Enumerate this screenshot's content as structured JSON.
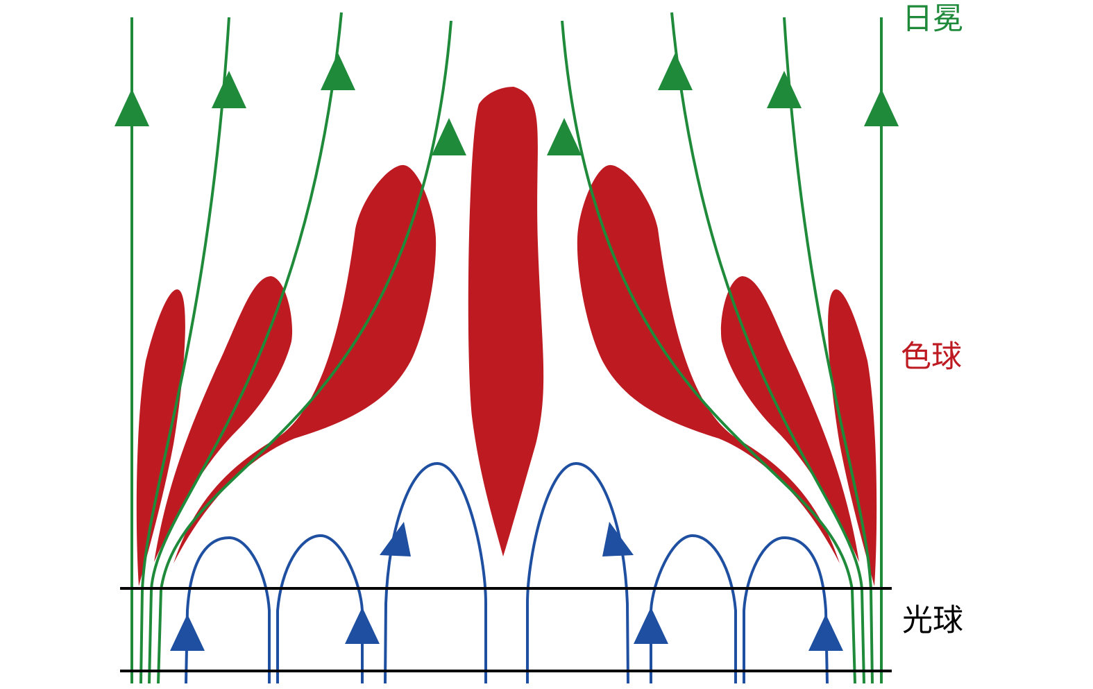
{
  "labels": {
    "corona": "日冕",
    "chromosphere": "色球",
    "photosphere": "光球"
  }
}
